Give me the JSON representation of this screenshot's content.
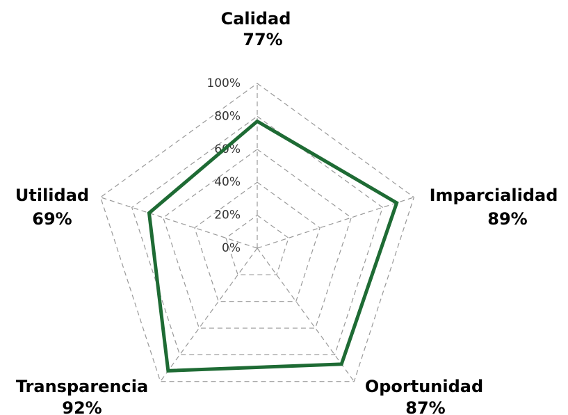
{
  "chart_data": {
    "type": "radar",
    "categories": [
      "Calidad",
      "Imparcialidad",
      "Oportunidad",
      "Transparencia",
      "Utilidad"
    ],
    "values": [
      77,
      89,
      87,
      92,
      69
    ],
    "value_labels": [
      "77%",
      "89%",
      "87%",
      "92%",
      "69%"
    ],
    "color": "#1e6b34",
    "ylim": [
      0,
      100
    ],
    "yticks": [
      {
        "value": 0,
        "label": "0%"
      },
      {
        "value": 20,
        "label": "20%"
      },
      {
        "value": 40,
        "label": "40%"
      },
      {
        "value": 60,
        "label": "60%"
      },
      {
        "value": 80,
        "label": "80%"
      },
      {
        "value": 100,
        "label": "100%"
      }
    ],
    "grid": true
  }
}
